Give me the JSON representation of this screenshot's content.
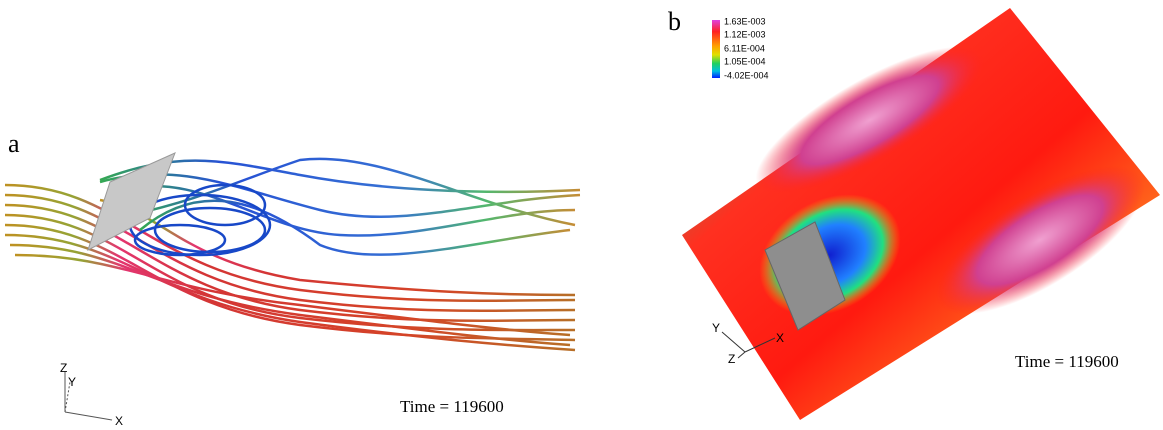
{
  "panels": [
    {
      "label": "a",
      "time": "Time = 119600",
      "axes": [
        "Z",
        "Y",
        "X"
      ]
    },
    {
      "label": "b",
      "time": "Time = 119600",
      "axes": [
        "Y",
        "Z",
        "X"
      ],
      "legend": [
        "1.63E-003",
        "1.12E-003",
        "6.11E-004",
        "1.05E-004",
        "-4.02E-004"
      ]
    }
  ]
}
